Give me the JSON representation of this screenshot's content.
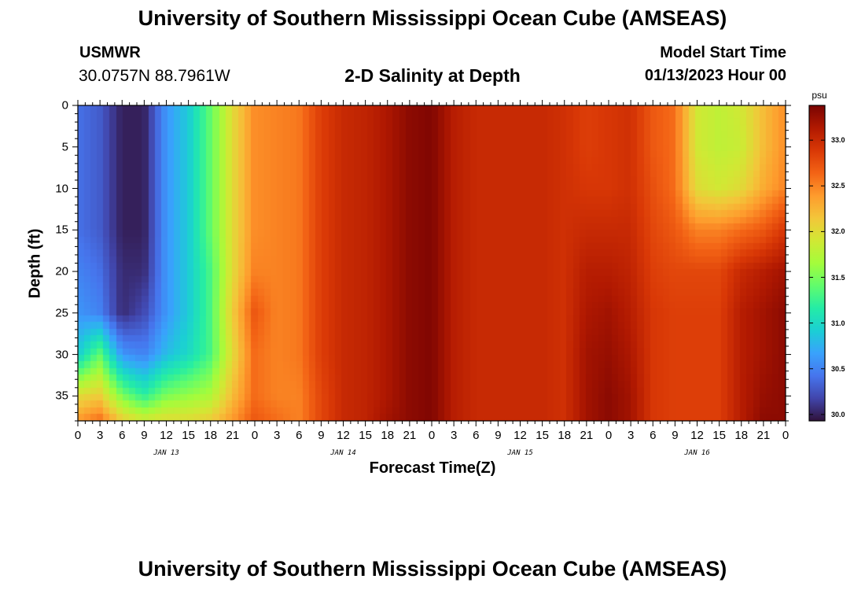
{
  "header": {
    "title": "University of Southern Mississippi Ocean Cube (AMSEAS)",
    "station_id": "USMWR",
    "coords": "30.0757N  88.7961W",
    "subtitle": "2-D Salinity at Depth",
    "start_label": "Model Start Time",
    "start_value": "01/13/2023 Hour 00"
  },
  "footer": {
    "title": "University of Southern Mississippi Ocean Cube (AMSEAS)"
  },
  "chart_data": {
    "type": "heatmap",
    "title": "2-D Salinity at Depth",
    "xlabel": "Forecast Time(Z)",
    "ylabel": "Depth (ft)",
    "units": "psu",
    "xlim": [
      0,
      96
    ],
    "ylim": [
      38,
      0
    ],
    "x_tick_labels": [
      "0",
      "3",
      "6",
      "9",
      "12",
      "15",
      "18",
      "21",
      "0",
      "3",
      "6",
      "9",
      "12",
      "15",
      "18",
      "21",
      "0",
      "3",
      "6",
      "9",
      "12",
      "15",
      "18",
      "21",
      "0",
      "3",
      "6",
      "9",
      "12",
      "15",
      "18",
      "21",
      "0"
    ],
    "y_ticks": [
      0,
      5,
      10,
      15,
      20,
      25,
      30,
      35
    ],
    "day_labels": [
      {
        "label": "JAN 13",
        "hour": 12
      },
      {
        "label": "JAN 14",
        "hour": 36
      },
      {
        "label": "JAN 15",
        "hour": 60
      },
      {
        "label": "JAN 16",
        "hour": 84
      }
    ],
    "colorbar": {
      "min": 29.93,
      "max": 33.38,
      "ticks": [
        30.0,
        30.5,
        31.0,
        31.5,
        32.0,
        32.5,
        33.0
      ]
    },
    "hours": [
      0,
      3,
      6,
      9,
      12,
      15,
      18,
      21,
      24,
      27,
      30,
      33,
      36,
      39,
      42,
      45,
      48,
      51,
      54,
      57,
      60,
      63,
      66,
      69,
      72,
      75,
      78,
      81,
      84,
      87,
      90,
      93,
      96
    ],
    "depths": [
      0,
      5,
      10,
      15,
      20,
      25,
      30,
      35,
      38
    ],
    "values": [
      [
        30.4,
        30.4,
        30.4,
        30.4,
        30.5,
        30.6,
        30.9,
        32.0,
        32.4
      ],
      [
        30.3,
        30.3,
        30.3,
        30.3,
        30.4,
        30.5,
        31.4,
        32.1,
        32.6
      ],
      [
        30.0,
        30.0,
        30.0,
        30.0,
        30.05,
        30.05,
        30.6,
        31.5,
        32.1
      ],
      [
        30.0,
        30.0,
        30.0,
        30.0,
        30.05,
        30.2,
        30.5,
        31.2,
        31.9
      ],
      [
        30.6,
        30.6,
        30.6,
        30.6,
        30.6,
        30.6,
        30.8,
        31.5,
        32.0
      ],
      [
        30.9,
        30.9,
        30.9,
        30.9,
        30.9,
        30.9,
        31.0,
        31.6,
        32.0
      ],
      [
        31.4,
        31.4,
        31.4,
        31.4,
        31.3,
        31.3,
        31.3,
        31.7,
        32.1
      ],
      [
        32.0,
        32.0,
        32.0,
        32.0,
        32.0,
        32.1,
        32.0,
        32.2,
        32.4
      ],
      [
        32.45,
        32.45,
        32.45,
        32.45,
        32.5,
        32.7,
        32.6,
        32.6,
        32.7
      ],
      [
        32.5,
        32.5,
        32.5,
        32.5,
        32.5,
        32.5,
        32.5,
        32.5,
        32.6
      ],
      [
        32.55,
        32.55,
        32.55,
        32.55,
        32.55,
        32.55,
        32.55,
        32.5,
        32.5
      ],
      [
        32.85,
        32.85,
        32.85,
        32.85,
        32.85,
        32.85,
        32.85,
        32.8,
        32.8
      ],
      [
        33.0,
        33.0,
        33.0,
        33.0,
        33.0,
        33.0,
        33.0,
        33.0,
        33.0
      ],
      [
        33.05,
        33.05,
        33.05,
        33.05,
        33.05,
        33.05,
        33.05,
        33.05,
        33.05
      ],
      [
        33.15,
        33.15,
        33.15,
        33.15,
        33.15,
        33.15,
        33.15,
        33.15,
        33.2
      ],
      [
        33.3,
        33.3,
        33.3,
        33.3,
        33.3,
        33.3,
        33.3,
        33.3,
        33.3
      ],
      [
        33.35,
        33.35,
        33.35,
        33.35,
        33.35,
        33.35,
        33.35,
        33.35,
        33.35
      ],
      [
        33.1,
        33.1,
        33.1,
        33.1,
        33.1,
        33.1,
        33.1,
        33.1,
        33.1
      ],
      [
        33.0,
        33.0,
        33.0,
        33.0,
        33.0,
        33.0,
        33.0,
        33.0,
        33.0
      ],
      [
        33.0,
        33.0,
        33.0,
        33.0,
        33.0,
        33.0,
        33.0,
        33.0,
        33.0
      ],
      [
        33.0,
        33.0,
        33.0,
        33.0,
        33.0,
        33.0,
        33.0,
        33.0,
        33.0
      ],
      [
        33.0,
        33.0,
        33.0,
        33.0,
        33.0,
        33.0,
        33.0,
        33.0,
        33.0
      ],
      [
        32.95,
        32.95,
        32.95,
        32.95,
        32.95,
        32.95,
        32.95,
        32.95,
        32.95
      ],
      [
        32.85,
        32.85,
        32.9,
        33.0,
        33.1,
        33.15,
        33.2,
        33.2,
        33.2
      ],
      [
        32.9,
        32.9,
        32.9,
        33.0,
        33.1,
        33.2,
        33.25,
        33.3,
        33.3
      ],
      [
        32.95,
        32.95,
        32.95,
        33.0,
        33.05,
        33.1,
        33.15,
        33.2,
        33.2
      ],
      [
        32.7,
        32.7,
        32.75,
        32.8,
        32.85,
        32.9,
        32.9,
        32.9,
        32.9
      ],
      [
        32.6,
        32.6,
        32.6,
        32.7,
        32.8,
        32.85,
        32.85,
        32.85,
        32.85
      ],
      [
        31.9,
        31.9,
        32.0,
        32.5,
        32.8,
        32.85,
        32.85,
        32.85,
        32.85
      ],
      [
        31.8,
        31.8,
        31.9,
        32.5,
        32.8,
        32.85,
        32.85,
        32.85,
        32.85
      ],
      [
        31.9,
        31.85,
        32.0,
        32.6,
        33.0,
        33.1,
        33.1,
        33.1,
        33.1
      ],
      [
        32.2,
        32.2,
        32.3,
        32.7,
        33.1,
        33.2,
        33.2,
        33.25,
        33.3
      ],
      [
        32.45,
        32.45,
        32.5,
        32.9,
        33.2,
        33.3,
        33.3,
        33.3,
        33.3
      ]
    ]
  },
  "colors": {
    "colormap": [
      "#30123b",
      "#4145ab",
      "#4675ed",
      "#39a2fc",
      "#1bcfd4",
      "#24eca6",
      "#61fc6c",
      "#a4fc3b",
      "#d1e834",
      "#f3c63a",
      "#fe9b2d",
      "#f36315",
      "#d93806",
      "#b11901",
      "#7a0402"
    ]
  }
}
